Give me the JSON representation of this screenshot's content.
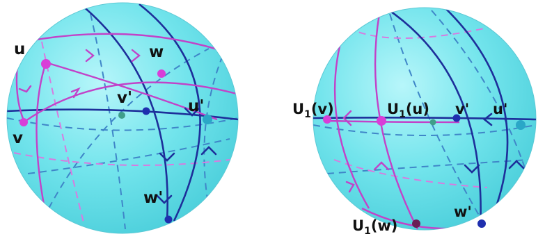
{
  "colors": {
    "sphere": "#6ee6ee",
    "sphere_edge": "#58c8d4",
    "navy": "#1d2f9a",
    "dashed_blue": "#3f86c8",
    "magenta": "#c242c8",
    "magenta_light": "#d77be0",
    "point_magenta": "#d83ed8",
    "point_navy": "#1f2fae",
    "point_dark": "#6a1f55",
    "point_hidden_green": "#3f9e8a",
    "point_hidden_teal": "#2aa7c7"
  },
  "left_sphere": {
    "labels": {
      "u": "u",
      "w": "w",
      "v_prime": "v'",
      "u_prime": "u'",
      "v": "v",
      "w_prime": "w'"
    }
  },
  "right_sphere": {
    "labels": {
      "u1v_base": "U",
      "u1v_sub": "1",
      "u1v_arg": "(v)",
      "u1u_base": "U",
      "u1u_sub": "1",
      "u1u_arg": "(u)",
      "v_prime": "v'",
      "u_prime": "u'",
      "w_prime": "w'",
      "u1w_base": "U",
      "u1w_sub": "1",
      "u1w_arg": "(w)"
    }
  }
}
